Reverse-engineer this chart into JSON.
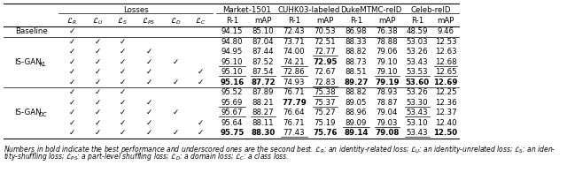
{
  "font_size": 6.2,
  "caption_font_size": 5.5,
  "rows": [
    {
      "label": "Baseline",
      "label_span": 1,
      "checks": [
        1,
        0,
        0,
        0,
        0,
        0
      ],
      "values": [
        "94.15",
        "85.10",
        "72.43",
        "70.53",
        "86.98",
        "76.38",
        "48.59",
        "9.46"
      ],
      "bold": [
        false,
        false,
        false,
        false,
        false,
        false,
        false,
        false
      ],
      "underline": [
        false,
        false,
        false,
        false,
        false,
        false,
        false,
        false
      ]
    },
    {
      "label": "IS-GAN_KL",
      "label_span": 5,
      "checks": [
        1,
        1,
        1,
        0,
        0,
        0
      ],
      "values": [
        "94.80",
        "87.04",
        "73.71",
        "72.51",
        "88.33",
        "78.88",
        "53.03",
        "12.53"
      ],
      "bold": [
        false,
        false,
        false,
        false,
        false,
        false,
        false,
        false
      ],
      "underline": [
        false,
        false,
        false,
        false,
        false,
        false,
        false,
        false
      ]
    },
    {
      "label": "",
      "label_span": 0,
      "checks": [
        1,
        1,
        1,
        1,
        0,
        0
      ],
      "values": [
        "94.95",
        "87.44",
        "74.00",
        "72.77",
        "88.82",
        "79.06",
        "53.26",
        "12.63"
      ],
      "bold": [
        false,
        false,
        false,
        false,
        false,
        false,
        false,
        false
      ],
      "underline": [
        false,
        false,
        false,
        true,
        false,
        false,
        false,
        false
      ]
    },
    {
      "label": "",
      "label_span": 0,
      "checks": [
        1,
        1,
        1,
        1,
        1,
        0
      ],
      "values": [
        "95.10",
        "87.52",
        "74.21",
        "72.95",
        "88.73",
        "79.10",
        "53.43",
        "12.68"
      ],
      "bold": [
        false,
        false,
        false,
        true,
        false,
        false,
        false,
        false
      ],
      "underline": [
        true,
        false,
        true,
        false,
        false,
        false,
        false,
        true
      ]
    },
    {
      "label": "",
      "label_span": 0,
      "checks": [
        1,
        1,
        1,
        1,
        0,
        1
      ],
      "values": [
        "95.10",
        "87.54",
        "72.86",
        "72.67",
        "88.51",
        "79.10",
        "53.53",
        "12.65"
      ],
      "bold": [
        false,
        false,
        false,
        false,
        false,
        false,
        false,
        false
      ],
      "underline": [
        true,
        true,
        true,
        false,
        false,
        true,
        true,
        true
      ]
    },
    {
      "label": "",
      "label_span": 0,
      "checks": [
        1,
        1,
        1,
        1,
        1,
        1
      ],
      "values": [
        "95.16",
        "87.72",
        "74.93",
        "72.83",
        "89.27",
        "79.19",
        "53.60",
        "12.69"
      ],
      "bold": [
        true,
        true,
        false,
        false,
        true,
        true,
        true,
        true
      ],
      "underline": [
        false,
        false,
        false,
        true,
        false,
        false,
        false,
        false
      ]
    },
    {
      "label": "IS-GAN_DC",
      "label_span": 5,
      "checks": [
        1,
        1,
        1,
        0,
        0,
        0
      ],
      "values": [
        "95.52",
        "87.89",
        "76.71",
        "75.38",
        "88.82",
        "78.93",
        "53.26",
        "12.25"
      ],
      "bold": [
        false,
        false,
        false,
        false,
        false,
        false,
        false,
        false
      ],
      "underline": [
        false,
        false,
        false,
        true,
        false,
        false,
        false,
        false
      ]
    },
    {
      "label": "",
      "label_span": 0,
      "checks": [
        1,
        1,
        1,
        1,
        0,
        0
      ],
      "values": [
        "95.69",
        "88.21",
        "77.79",
        "75.37",
        "89.05",
        "78.87",
        "53.30",
        "12.36"
      ],
      "bold": [
        false,
        false,
        true,
        false,
        false,
        false,
        false,
        false
      ],
      "underline": [
        true,
        false,
        false,
        true,
        false,
        false,
        true,
        false
      ]
    },
    {
      "label": "",
      "label_span": 0,
      "checks": [
        1,
        1,
        1,
        1,
        1,
        0
      ],
      "values": [
        "95.67",
        "88.27",
        "76.64",
        "75.27",
        "88.96",
        "79.04",
        "53.43",
        "12.37"
      ],
      "bold": [
        false,
        false,
        false,
        false,
        false,
        false,
        false,
        false
      ],
      "underline": [
        true,
        true,
        false,
        false,
        false,
        false,
        true,
        false
      ]
    },
    {
      "label": "",
      "label_span": 0,
      "checks": [
        1,
        1,
        1,
        1,
        0,
        1
      ],
      "values": [
        "95.64",
        "88.11",
        "76.71",
        "75.19",
        "89.09",
        "79.03",
        "53.10",
        "12.40"
      ],
      "bold": [
        false,
        false,
        false,
        false,
        false,
        false,
        false,
        false
      ],
      "underline": [
        false,
        false,
        false,
        false,
        true,
        true,
        false,
        false
      ]
    },
    {
      "label": "",
      "label_span": 0,
      "checks": [
        1,
        1,
        1,
        1,
        1,
        1
      ],
      "values": [
        "95.75",
        "88.30",
        "77.43",
        "75.76",
        "89.14",
        "79.08",
        "53.43",
        "12.50"
      ],
      "bold": [
        true,
        true,
        false,
        true,
        true,
        true,
        false,
        true
      ],
      "underline": [
        false,
        false,
        true,
        false,
        false,
        false,
        true,
        false
      ]
    }
  ]
}
